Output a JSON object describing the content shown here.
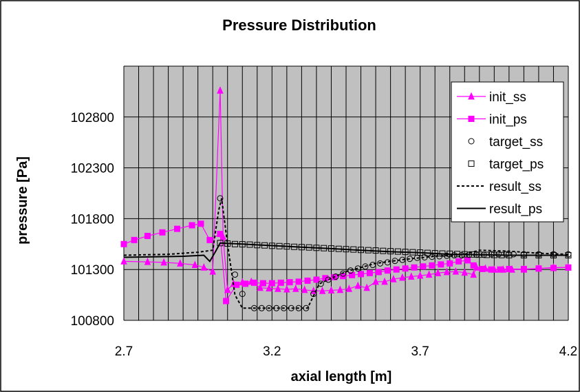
{
  "chart_data": {
    "type": "line",
    "title": "Pressure Distribution",
    "xlabel": "axial length [m]",
    "ylabel": "pressure [Pa]",
    "xlim": [
      2.7,
      4.2
    ],
    "ylim": [
      100800,
      103300
    ],
    "x_ticks": [
      "2.7",
      "3.2",
      "3.7",
      "4.2"
    ],
    "y_ticks": [
      "100800",
      "101300",
      "101800",
      "102300",
      "102800"
    ],
    "grid": true,
    "legend_position": "top-right",
    "colors": {
      "plot_bg": "#c0c0c0",
      "gridline": "#000000",
      "init": "#ff00ff",
      "target": "#000000",
      "result": "#000000"
    },
    "series": [
      {
        "name": "init_ss",
        "marker": "triangle",
        "line": "solid",
        "color": "#ff00ff",
        "points": [
          [
            2.7,
            101380
          ],
          [
            2.78,
            101375
          ],
          [
            2.835,
            101370
          ],
          [
            2.89,
            101360
          ],
          [
            2.94,
            101345
          ],
          [
            2.97,
            101320
          ],
          [
            3.0,
            101280
          ],
          [
            3.025,
            103060
          ],
          [
            3.035,
            101620
          ],
          [
            3.05,
            101100
          ],
          [
            3.07,
            101160
          ],
          [
            3.1,
            101175
          ],
          [
            3.13,
            101180
          ],
          [
            3.16,
            101120
          ],
          [
            3.19,
            101115
          ],
          [
            3.22,
            101110
          ],
          [
            3.25,
            101105
          ],
          [
            3.28,
            101110
          ],
          [
            3.31,
            101100
          ],
          [
            3.34,
            101090
          ],
          [
            3.37,
            101090
          ],
          [
            3.4,
            101095
          ],
          [
            3.43,
            101100
          ],
          [
            3.46,
            101110
          ],
          [
            3.49,
            101140
          ],
          [
            3.52,
            101120
          ],
          [
            3.55,
            101180
          ],
          [
            3.58,
            101180
          ],
          [
            3.61,
            101205
          ],
          [
            3.64,
            101220
          ],
          [
            3.67,
            101230
          ],
          [
            3.7,
            101240
          ],
          [
            3.73,
            101250
          ],
          [
            3.76,
            101265
          ],
          [
            3.79,
            101275
          ],
          [
            3.82,
            101280
          ],
          [
            3.85,
            101270
          ],
          [
            3.88,
            101250
          ],
          [
            3.89,
            101320
          ],
          [
            3.92,
            101310
          ],
          [
            3.95,
            101300
          ],
          [
            3.98,
            101300
          ],
          [
            4.01,
            101300
          ],
          [
            4.05,
            101300
          ],
          [
            4.1,
            101310
          ],
          [
            4.15,
            101320
          ],
          [
            4.2,
            101320
          ]
        ]
      },
      {
        "name": "init_ps",
        "marker": "square",
        "line": "solid",
        "color": "#ff00ff",
        "points": [
          [
            2.7,
            101550
          ],
          [
            2.735,
            101590
          ],
          [
            2.78,
            101630
          ],
          [
            2.83,
            101665
          ],
          [
            2.88,
            101700
          ],
          [
            2.93,
            101735
          ],
          [
            2.96,
            101750
          ],
          [
            2.99,
            101590
          ],
          [
            3.025,
            101650
          ],
          [
            3.045,
            100990
          ],
          [
            3.08,
            101150
          ],
          [
            3.11,
            101160
          ],
          [
            3.14,
            101170
          ],
          [
            3.17,
            101165
          ],
          [
            3.2,
            101165
          ],
          [
            3.23,
            101170
          ],
          [
            3.26,
            101175
          ],
          [
            3.29,
            101180
          ],
          [
            3.32,
            101190
          ],
          [
            3.35,
            101200
          ],
          [
            3.38,
            101215
          ],
          [
            3.41,
            101225
          ],
          [
            3.44,
            101235
          ],
          [
            3.47,
            101245
          ],
          [
            3.5,
            101255
          ],
          [
            3.53,
            101265
          ],
          [
            3.56,
            101275
          ],
          [
            3.59,
            101290
          ],
          [
            3.62,
            101300
          ],
          [
            3.65,
            101310
          ],
          [
            3.68,
            101320
          ],
          [
            3.71,
            101330
          ],
          [
            3.74,
            101340
          ],
          [
            3.77,
            101350
          ],
          [
            3.8,
            101360
          ],
          [
            3.83,
            101380
          ],
          [
            3.86,
            101390
          ],
          [
            3.88,
            101340
          ],
          [
            3.91,
            101305
          ],
          [
            3.94,
            101300
          ],
          [
            3.97,
            101300
          ],
          [
            4.0,
            101305
          ],
          [
            4.05,
            101305
          ],
          [
            4.1,
            101310
          ],
          [
            4.15,
            101315
          ],
          [
            4.2,
            101320
          ]
        ]
      },
      {
        "name": "target_ss",
        "marker": "circle-open",
        "line": "none",
        "color": "#000000",
        "points": [
          [
            3.025,
            102000
          ],
          [
            3.075,
            101250
          ],
          [
            3.1,
            101060
          ],
          [
            3.14,
            100920
          ],
          [
            3.165,
            100920
          ],
          [
            3.19,
            100920
          ],
          [
            3.215,
            100920
          ],
          [
            3.24,
            100920
          ],
          [
            3.265,
            100920
          ],
          [
            3.29,
            100920
          ],
          [
            3.315,
            100920
          ],
          [
            3.34,
            101060
          ],
          [
            3.365,
            101160
          ],
          [
            3.39,
            101200
          ],
          [
            3.415,
            101230
          ],
          [
            3.44,
            101260
          ],
          [
            3.465,
            101290
          ],
          [
            3.49,
            101310
          ],
          [
            3.515,
            101330
          ],
          [
            3.54,
            101345
          ],
          [
            3.565,
            101360
          ],
          [
            3.59,
            101370
          ],
          [
            3.615,
            101385
          ],
          [
            3.64,
            101395
          ],
          [
            3.665,
            101405
          ],
          [
            3.69,
            101415
          ],
          [
            3.715,
            101420
          ],
          [
            3.74,
            101425
          ],
          [
            3.765,
            101430
          ],
          [
            3.79,
            101435
          ],
          [
            3.815,
            101440
          ],
          [
            3.84,
            101440
          ],
          [
            3.865,
            101445
          ],
          [
            3.89,
            101445
          ],
          [
            3.915,
            101445
          ],
          [
            3.94,
            101450
          ],
          [
            3.965,
            101450
          ],
          [
            3.99,
            101450
          ],
          [
            4.015,
            101450
          ],
          [
            4.05,
            101450
          ],
          [
            4.1,
            101450
          ],
          [
            4.15,
            101450
          ],
          [
            4.2,
            101450
          ]
        ]
      },
      {
        "name": "target_ps",
        "marker": "square-open",
        "line": "none",
        "color": "#000000",
        "points": [
          [
            3.025,
            101560
          ],
          [
            3.05,
            101555
          ],
          [
            3.075,
            101550
          ],
          [
            3.1,
            101548
          ],
          [
            3.125,
            101545
          ],
          [
            3.15,
            101540
          ],
          [
            3.175,
            101537
          ],
          [
            3.2,
            101533
          ],
          [
            3.225,
            101530
          ],
          [
            3.25,
            101527
          ],
          [
            3.275,
            101523
          ],
          [
            3.3,
            101520
          ],
          [
            3.325,
            101517
          ],
          [
            3.35,
            101513
          ],
          [
            3.375,
            101510
          ],
          [
            3.4,
            101507
          ],
          [
            3.425,
            101503
          ],
          [
            3.45,
            101500
          ],
          [
            3.475,
            101497
          ],
          [
            3.5,
            101493
          ],
          [
            3.525,
            101490
          ],
          [
            3.55,
            101487
          ],
          [
            3.575,
            101483
          ],
          [
            3.6,
            101480
          ],
          [
            3.625,
            101477
          ],
          [
            3.65,
            101473
          ],
          [
            3.675,
            101470
          ],
          [
            3.7,
            101467
          ],
          [
            3.725,
            101463
          ],
          [
            3.75,
            101460
          ],
          [
            3.775,
            101457
          ],
          [
            3.8,
            101455
          ],
          [
            3.825,
            101452
          ],
          [
            3.85,
            101450
          ],
          [
            3.875,
            101448
          ],
          [
            3.9,
            101446
          ],
          [
            3.925,
            101444
          ],
          [
            3.95,
            101443
          ],
          [
            3.975,
            101442
          ],
          [
            4.0,
            101441
          ],
          [
            4.05,
            101440
          ],
          [
            4.1,
            101440
          ],
          [
            4.15,
            101440
          ],
          [
            4.2,
            101440
          ]
        ]
      },
      {
        "name": "result_ss",
        "marker": "none",
        "line": "dashed",
        "color": "#000000",
        "points": [
          [
            2.7,
            101440
          ],
          [
            2.85,
            101450
          ],
          [
            2.95,
            101470
          ],
          [
            3.0,
            101490
          ],
          [
            3.02,
            101880
          ],
          [
            3.03,
            102000
          ],
          [
            3.05,
            101550
          ],
          [
            3.075,
            101050
          ],
          [
            3.1,
            100920
          ],
          [
            3.32,
            100920
          ],
          [
            3.36,
            101160
          ],
          [
            3.45,
            101280
          ],
          [
            3.55,
            101360
          ],
          [
            3.65,
            101400
          ],
          [
            3.75,
            101430
          ],
          [
            3.85,
            101450
          ],
          [
            3.9,
            101490
          ],
          [
            4.0,
            101480
          ],
          [
            4.1,
            101460
          ],
          [
            4.2,
            101450
          ]
        ]
      },
      {
        "name": "result_ps",
        "marker": "none",
        "line": "solid",
        "color": "#000000",
        "points": [
          [
            2.7,
            101420
          ],
          [
            2.8,
            101425
          ],
          [
            2.9,
            101430
          ],
          [
            2.97,
            101440
          ],
          [
            2.99,
            101380
          ],
          [
            3.01,
            101480
          ],
          [
            3.025,
            101560
          ],
          [
            3.1,
            101550
          ],
          [
            3.2,
            101535
          ],
          [
            3.3,
            101520
          ],
          [
            3.4,
            101505
          ],
          [
            3.5,
            101490
          ],
          [
            3.6,
            101475
          ],
          [
            3.7,
            101465
          ],
          [
            3.8,
            101450
          ],
          [
            3.9,
            101445
          ],
          [
            4.0,
            101440
          ],
          [
            4.2,
            101440
          ]
        ]
      }
    ]
  }
}
